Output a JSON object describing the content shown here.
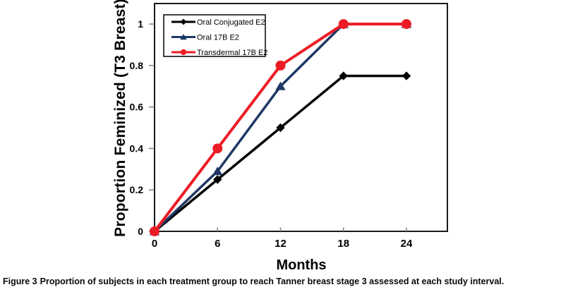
{
  "figure": {
    "caption_label": "Figure 3",
    "caption_text": "Proportion of subjects in each treatment group to reach Tanner breast stage 3 assessed at each study interval."
  },
  "chart_data": {
    "type": "line",
    "title": "",
    "xlabel": "Months",
    "ylabel": "Proportion Feminized (T3 Breast)",
    "x": [
      0,
      6,
      12,
      18,
      24
    ],
    "x_ticks": [
      0,
      6,
      12,
      18,
      24
    ],
    "y_ticks": [
      0,
      0.2,
      0.4,
      0.6,
      0.8,
      1
    ],
    "xlim": [
      0,
      27.9
    ],
    "ylim": [
      0,
      1.099
    ],
    "grid": false,
    "legend_position": "top-left-inside",
    "series": [
      {
        "name": "Oral Conjugated E2",
        "color": "#000000",
        "marker": "diamond",
        "values": [
          0,
          0.25,
          0.5,
          0.75,
          0.75
        ]
      },
      {
        "name": "Oral 17B E2",
        "color": "#1F3864",
        "marker": "triangle",
        "values": [
          0,
          0.29,
          0.7,
          1,
          1
        ]
      },
      {
        "name": "Transdermal 17B E2",
        "color": "#ED1C24",
        "marker": "circle",
        "values": [
          0,
          0.4,
          0.8,
          1,
          1
        ]
      }
    ],
    "colors": {
      "plot_border": "#1a1a1a",
      "tick": "#808080",
      "background": "#ffffff"
    }
  }
}
